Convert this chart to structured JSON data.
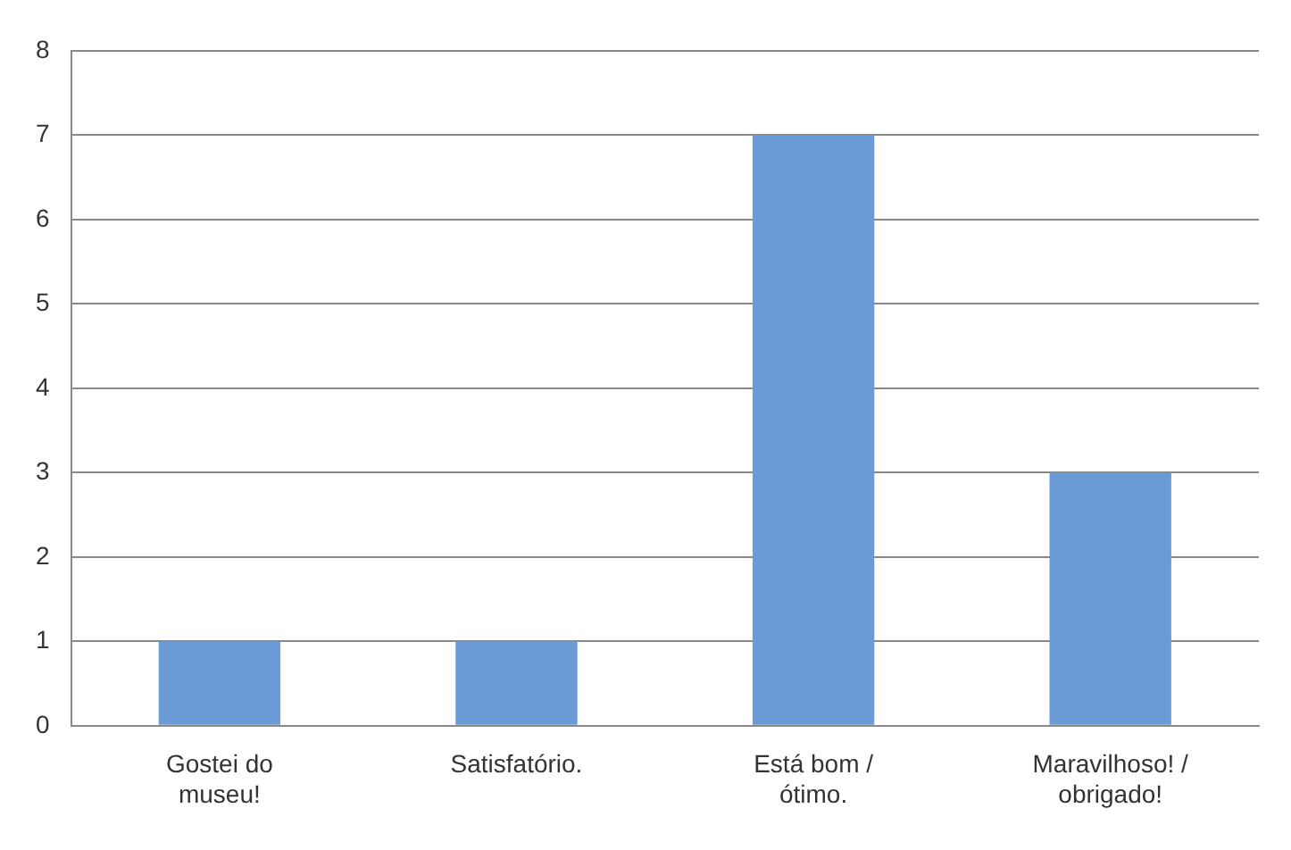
{
  "chart_data": {
    "type": "bar",
    "categories": [
      "Gostei do museu!",
      "Satisfatório.",
      "Está bom / ótimo.",
      "Maravilhoso! / obrigado!"
    ],
    "values": [
      1,
      1,
      7,
      3
    ],
    "color": "#6a9bd6",
    "ylim": [
      0,
      8
    ],
    "yticks": [
      0,
      1,
      2,
      3,
      4,
      5,
      6,
      7,
      8
    ],
    "grid": "y",
    "legend": false
  }
}
